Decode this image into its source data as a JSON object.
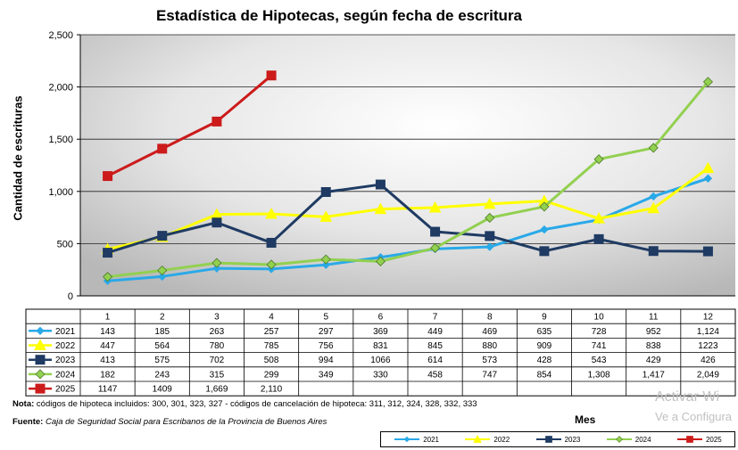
{
  "chart_data": {
    "type": "line",
    "title": "Estadística de Hipotecas, según fecha de escritura",
    "ylabel": "Cantidad de escrituras",
    "xlabel": "Mes",
    "ylim": [
      0,
      2500
    ],
    "yticks": [
      "0",
      "500",
      "1,000",
      "1,500",
      "2,000",
      "2,500"
    ],
    "categories": [
      "1",
      "2",
      "3",
      "4",
      "5",
      "6",
      "7",
      "8",
      "9",
      "10",
      "11",
      "12"
    ],
    "series": [
      {
        "name": "2021",
        "color": "#29a9e8",
        "marker": "diamond-small",
        "values": [
          143,
          185,
          263,
          257,
          297,
          369,
          449,
          469,
          635,
          728,
          952,
          1124
        ],
        "labels": [
          "143",
          "185",
          "263",
          "257",
          "297",
          "369",
          "449",
          "469",
          "635",
          "728",
          "952",
          "1,124"
        ]
      },
      {
        "name": "2022",
        "color": "#ffff00",
        "marker": "triangle",
        "values": [
          447,
          564,
          780,
          785,
          756,
          831,
          845,
          880,
          909,
          741,
          838,
          1223
        ],
        "labels": [
          "447",
          "564",
          "780",
          "785",
          "756",
          "831",
          "845",
          "880",
          "909",
          "741",
          "838",
          "1223"
        ]
      },
      {
        "name": "2023",
        "color": "#1f3b63",
        "marker": "square",
        "values": [
          413,
          575,
          702,
          508,
          994,
          1066,
          614,
          573,
          428,
          543,
          429,
          426
        ],
        "labels": [
          "413",
          "575",
          "702",
          "508",
          "994",
          "1066",
          "614",
          "573",
          "428",
          "543",
          "429",
          "426"
        ]
      },
      {
        "name": "2024",
        "color": "#92d050",
        "marker": "diamond",
        "values": [
          182,
          243,
          315,
          299,
          349,
          330,
          458,
          747,
          854,
          1308,
          1417,
          2049
        ],
        "labels": [
          "182",
          "243",
          "315",
          "299",
          "349",
          "330",
          "458",
          "747",
          "854",
          "1,308",
          "1,417",
          "2,049"
        ]
      },
      {
        "name": "2025",
        "color": "#cc1b1b",
        "marker": "square",
        "values": [
          1147,
          1409,
          1669,
          2110,
          null,
          null,
          null,
          null,
          null,
          null,
          null,
          null
        ],
        "labels": [
          "1147",
          "1409",
          "1,669",
          "2,110",
          "",
          "",
          "",
          "",
          "",
          "",
          "",
          ""
        ]
      }
    ],
    "grid": true,
    "legend": "bottom"
  },
  "note_label": "Nota:",
  "note_text": "códigos de hipoteca incluidos: 300, 301, 323, 327 - códigos de cancelación de hipoteca: 311, 312, 324, 328, 332, 333",
  "source_label": "Fuente:",
  "source_text": "Caja de Seguridad Social para Escribanos de la Provincia de Buenos Aires",
  "watermark_line1": "Activar Wi",
  "watermark_line2": "Ve a Configura"
}
